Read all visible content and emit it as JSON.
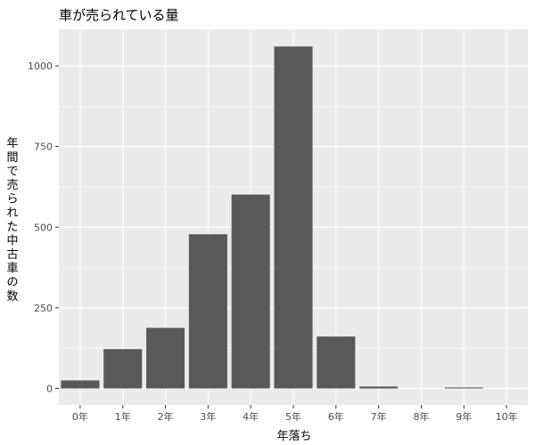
{
  "chart_data": {
    "type": "bar",
    "title": "車が売られている量",
    "xlabel": "年落ち",
    "ylabel": "年間で売られた中古車の数",
    "categories": [
      "0年",
      "1年",
      "2年",
      "3年",
      "4年",
      "5年",
      "6年",
      "7年",
      "8年",
      "9年",
      "10年"
    ],
    "values": [
      25,
      122,
      188,
      478,
      601,
      1060,
      161,
      6,
      0,
      3,
      0
    ],
    "ylim": [
      0,
      1100
    ],
    "yticks": [
      0,
      250,
      500,
      750,
      1000
    ],
    "grid": true,
    "colors": {
      "panel_background": "#ebebeb",
      "grid_major": "#ffffff",
      "bar_fill": "#595959"
    }
  }
}
